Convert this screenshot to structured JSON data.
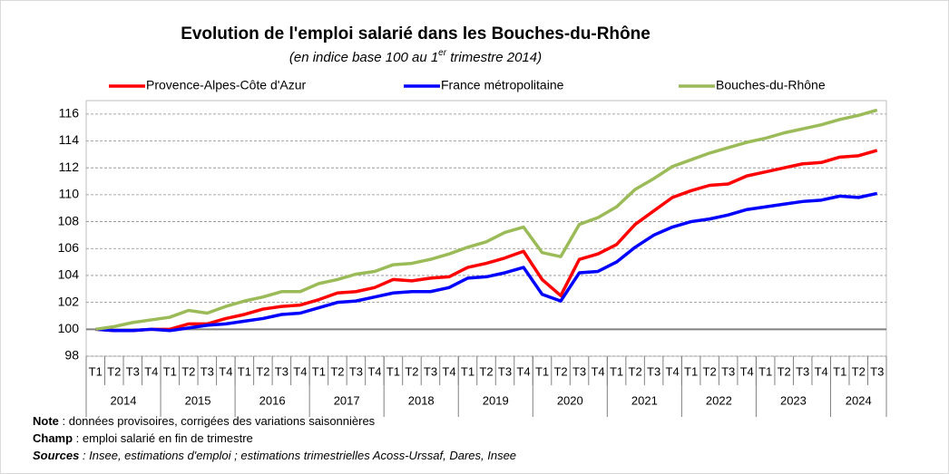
{
  "chart_data": {
    "type": "line",
    "title": "Evolution de l'emploi salarié dans les Bouches-du-Rhône",
    "subtitle": [
      "(en indice base 100 au 1",
      "er",
      " trimestre 2014)"
    ],
    "categories": [
      "T1",
      "T2",
      "T3",
      "T4",
      "T1",
      "T2",
      "T3",
      "T4",
      "T1",
      "T2",
      "T3",
      "T4",
      "T1",
      "T2",
      "T3",
      "T4",
      "T1",
      "T2",
      "T3",
      "T4",
      "T1",
      "T2",
      "T3",
      "T4",
      "T1",
      "T2",
      "T3",
      "T4",
      "T1",
      "T2",
      "T3",
      "T4",
      "T1",
      "T2",
      "T3",
      "T4",
      "T1",
      "T2",
      "T3",
      "T4",
      "T1",
      "T2",
      "T3"
    ],
    "groups": [
      "2014",
      "2015",
      "2016",
      "2017",
      "2018",
      "2019",
      "2020",
      "2021",
      "2022",
      "2023",
      "2024"
    ],
    "series": [
      {
        "name": "Provence-Alpes-Côte d'Azur",
        "color": "#ff0000",
        "values": [
          100,
          99.9,
          99.9,
          100.0,
          100.0,
          100.4,
          100.4,
          100.8,
          101.1,
          101.5,
          101.7,
          101.8,
          102.2,
          102.7,
          102.8,
          103.1,
          103.7,
          103.6,
          103.8,
          103.9,
          104.6,
          104.9,
          105.3,
          105.8,
          103.7,
          102.5,
          105.2,
          105.6,
          106.3,
          107.8,
          108.8,
          109.8,
          110.3,
          110.7,
          110.8,
          111.4,
          111.7,
          112.0,
          112.3,
          112.4,
          112.8,
          112.9,
          113.3
        ]
      },
      {
        "name": "France métropolitaine",
        "color": "#0000ff",
        "values": [
          100,
          99.9,
          99.9,
          100.0,
          99.9,
          100.1,
          100.3,
          100.4,
          100.6,
          100.8,
          101.1,
          101.2,
          101.6,
          102.0,
          102.1,
          102.4,
          102.7,
          102.8,
          102.8,
          103.1,
          103.8,
          103.9,
          104.2,
          104.6,
          102.6,
          102.1,
          104.2,
          104.3,
          105.0,
          106.1,
          107.0,
          107.6,
          108.0,
          108.2,
          108.5,
          108.9,
          109.1,
          109.3,
          109.5,
          109.6,
          109.9,
          109.8,
          110.1
        ]
      },
      {
        "name": "Bouches-du-Rhône",
        "color": "#9bbb59",
        "values": [
          100,
          100.2,
          100.5,
          100.7,
          100.9,
          101.4,
          101.2,
          101.7,
          102.1,
          102.4,
          102.8,
          102.8,
          103.4,
          103.7,
          104.1,
          104.3,
          104.8,
          104.9,
          105.2,
          105.6,
          106.1,
          106.5,
          107.2,
          107.6,
          105.7,
          105.4,
          107.8,
          108.3,
          109.1,
          110.4,
          111.2,
          112.1,
          112.6,
          113.1,
          113.5,
          113.9,
          114.2,
          114.6,
          114.9,
          115.2,
          115.6,
          115.9,
          116.3
        ]
      }
    ],
    "ylim": [
      98,
      117
    ],
    "yticks": [
      98,
      100,
      102,
      104,
      106,
      108,
      110,
      112,
      114,
      116
    ],
    "grid": true,
    "legend": "top",
    "notes": [
      {
        "label": "Note",
        "text": " : données provisoires, corrigées des variations saisonnières"
      },
      {
        "label": "Champ",
        "text": " : emploi salarié en fin de trimestre"
      },
      {
        "label": "Sources",
        "text": " : Insee, estimations d'emploi ; estimations trimestrielles Acoss-Urssaf, Dares, Insee"
      }
    ]
  }
}
